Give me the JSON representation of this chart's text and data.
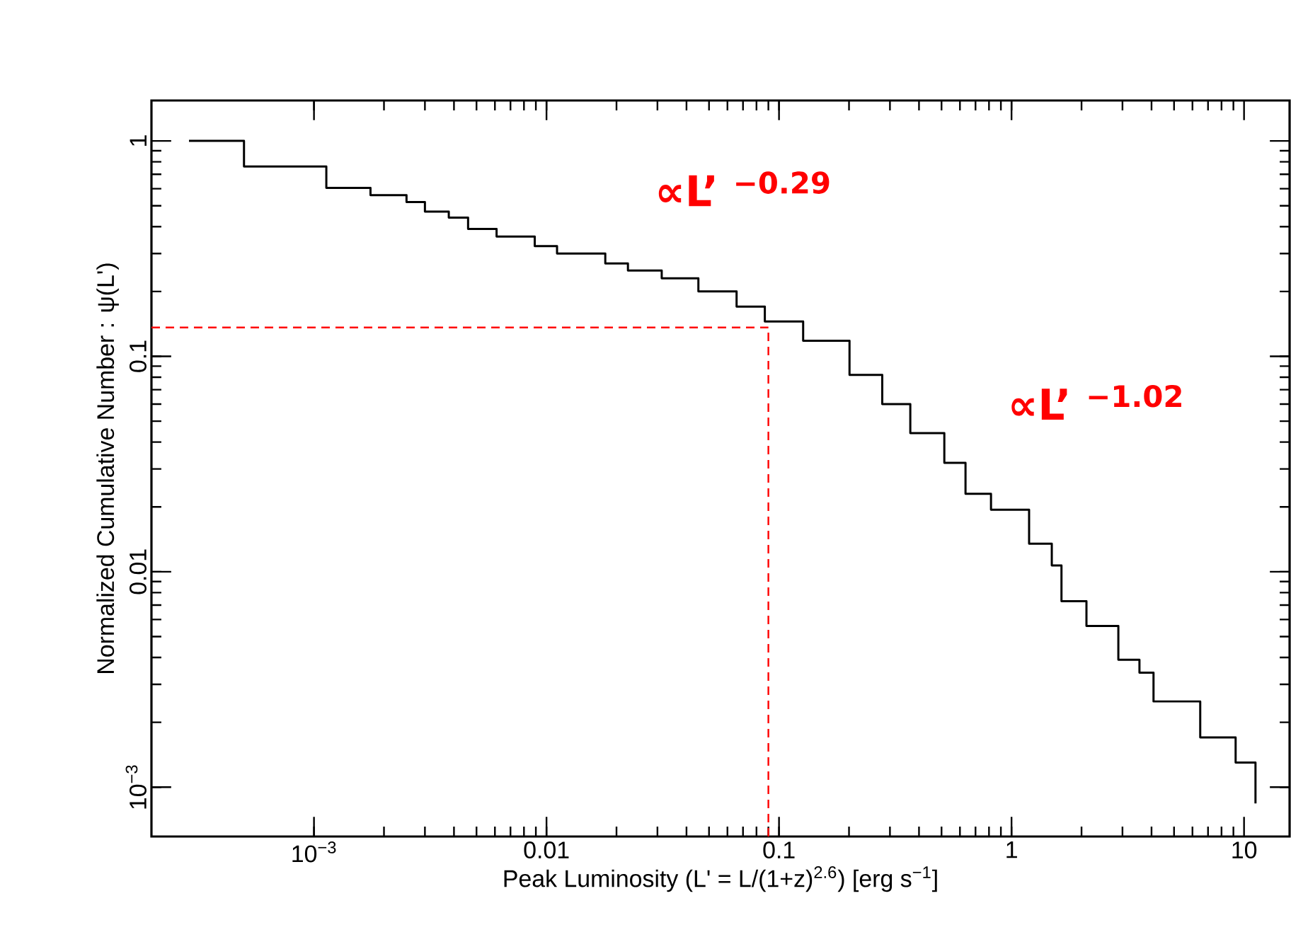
{
  "chart_data": {
    "type": "step",
    "xlabel": "Peak Luminosity (L' = L/(1+z)$^{2.6}$) [erg s$^{−1}$]",
    "ylabel": "Normalized Cumulative Number : ψ(L')",
    "log": "xy",
    "xlim": [
      0.0002,
      15.7
    ],
    "ylim": [
      0.00059,
      1.54
    ],
    "xticks": [
      {
        "value": 0.001,
        "label": "10$^{−3}$"
      },
      0.01,
      0.1,
      1,
      10
    ],
    "yticks": [
      {
        "value": 0.001,
        "label": "10$^{−3}$"
      },
      0.01,
      0.1,
      1
    ],
    "series": [
      {
        "color": "#000000",
        "x": [
          0.00029,
          0.0005,
          0.00113,
          0.00175,
          0.0025,
          0.003,
          0.0038,
          0.0046,
          0.0061,
          0.0089,
          0.0111,
          0.0179,
          0.0224,
          0.0313,
          0.045,
          0.0657,
          0.0869,
          0.127,
          0.201,
          0.278,
          0.367,
          0.514,
          0.634,
          0.816,
          1.19,
          1.49,
          1.64,
          2.1,
          2.88,
          3.55,
          4.08,
          6.48,
          9.2,
          11.2
        ],
        "values": [
          1,
          0.76,
          0.605,
          0.56,
          0.52,
          0.47,
          0.44,
          0.39,
          0.36,
          0.325,
          0.3,
          0.27,
          0.25,
          0.23,
          0.2,
          0.17,
          0.145,
          0.118,
          0.082,
          0.06,
          0.044,
          0.032,
          0.023,
          0.0194,
          0.0135,
          0.0107,
          0.0073,
          0.0056,
          0.0039,
          0.0034,
          0.0025,
          0.0017,
          0.0013,
          0.00084
        ]
      }
    ],
    "ref_lines": [
      {
        "axis": "x",
        "value": 0.09,
        "color": "#ff0000",
        "line_style": "dashed"
      },
      {
        "axis": "y",
        "value": 0.136,
        "color": "#ff0000",
        "line_style": "dashed"
      }
    ],
    "annotations": [
      "∝L’ $^{−0.29}$",
      "∝L’ $^{−1.02}$"
    ]
  }
}
